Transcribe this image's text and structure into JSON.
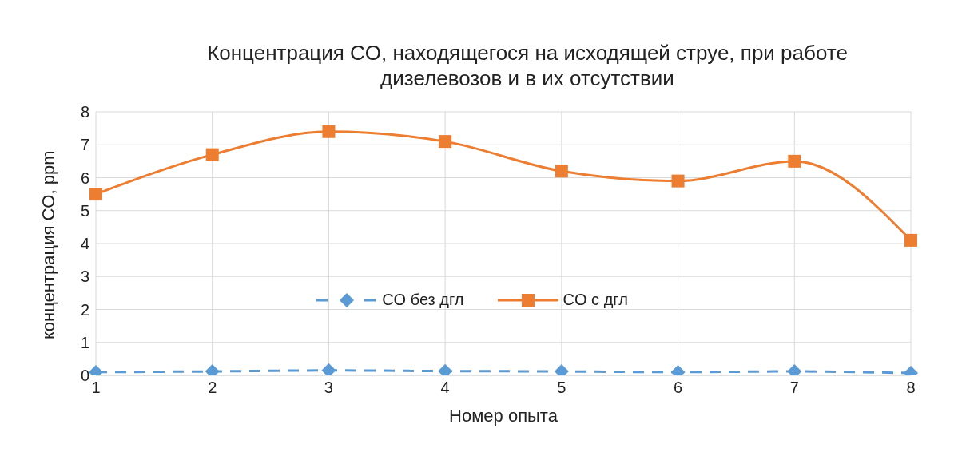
{
  "chart_data": {
    "type": "line",
    "title": "Концентрация CO, находящегося на исходящей струе, при работе дизелевозов и в их отсутствии",
    "xlabel": "Номер опыта",
    "ylabel": "концентрация CO, ppm",
    "categories": [
      "1",
      "2",
      "3",
      "4",
      "5",
      "6",
      "7",
      "8"
    ],
    "series": [
      {
        "name": "CO без дгл",
        "color": "#5b9bd5",
        "marker": "diamond",
        "line_style": "dashed",
        "values": [
          0.1,
          0.12,
          0.15,
          0.13,
          0.12,
          0.1,
          0.12,
          0.07
        ]
      },
      {
        "name": "CO с дгл",
        "color": "#ed7d31",
        "marker": "square",
        "line_style": "solid",
        "values": [
          5.5,
          6.7,
          7.4,
          7.1,
          6.2,
          5.9,
          6.5,
          4.1
        ]
      }
    ],
    "ylim": [
      0,
      8
    ],
    "yticks": [
      0,
      1,
      2,
      3,
      4,
      5,
      6,
      7,
      8
    ],
    "grid": true,
    "legend": "center"
  }
}
